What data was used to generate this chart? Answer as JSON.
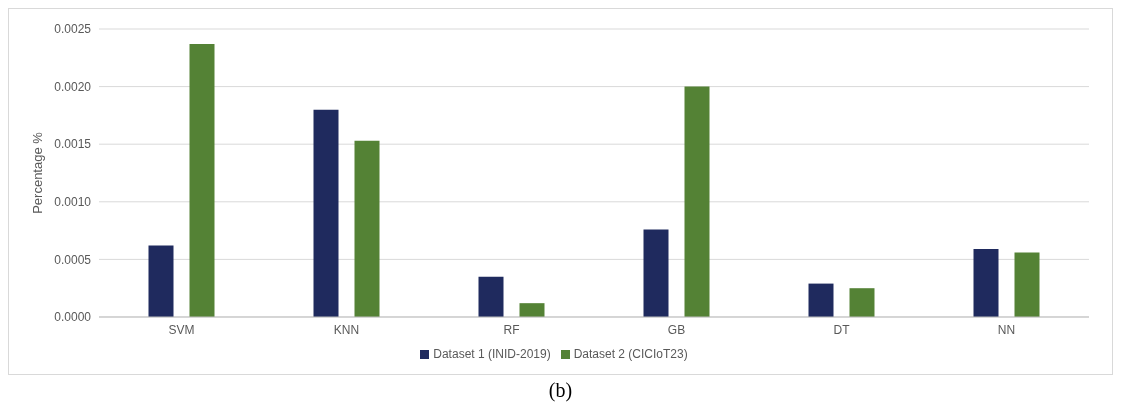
{
  "chart_data": {
    "type": "bar",
    "ylabel": "Percentage %",
    "categories": [
      "SVM",
      "KNN",
      "RF",
      "GB",
      "DT",
      "NN"
    ],
    "series": [
      {
        "name": "Dataset 1 (INID-2019)",
        "color": "#1f2a5e",
        "values": [
          0.00062,
          0.0018,
          0.00035,
          0.00076,
          0.00029,
          0.00059
        ]
      },
      {
        "name": "Dataset 2 (CICIoT23)",
        "color": "#548235",
        "values": [
          0.00237,
          0.00153,
          0.00012,
          0.002,
          0.00025,
          0.00056
        ]
      }
    ],
    "ylim": [
      0,
      0.0025
    ],
    "yticks": [
      {
        "value": 0,
        "label": "0.0000"
      },
      {
        "value": 0.0005,
        "label": "0.0005"
      },
      {
        "value": 0.001,
        "label": "0.0010"
      },
      {
        "value": 0.0015,
        "label": "0.0015"
      },
      {
        "value": 0.002,
        "label": "0.0020"
      },
      {
        "value": 0.0025,
        "label": "0.0025"
      }
    ],
    "grid": "y",
    "legend": "bottom",
    "annotations": [
      "(b)"
    ]
  }
}
